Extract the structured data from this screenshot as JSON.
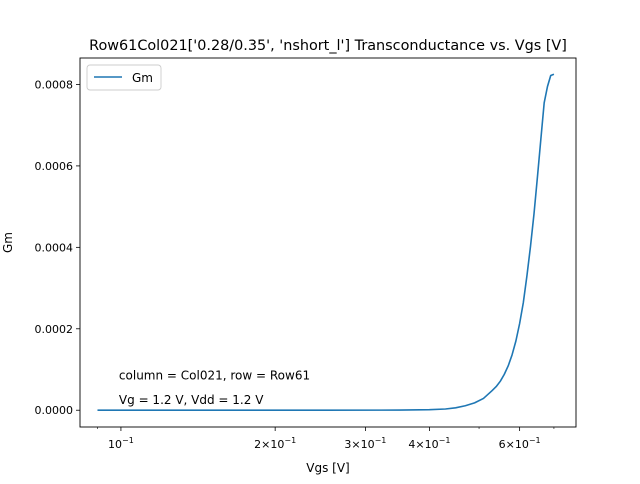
{
  "chart_data": {
    "type": "line",
    "title": "Row61Col021['0.28/0.35', 'nshort_l'] Transconductance vs. Vgs [V]",
    "xlabel": "Vgs [V]",
    "ylabel": "Gm",
    "xscale": "log",
    "xlim": [
      0.0832,
      0.773
    ],
    "ylim": [
      -4.12e-05,
      0.000865
    ],
    "grid": false,
    "legend_position": "top-left",
    "x_ticks": [
      {
        "value": 0.1,
        "base": "10",
        "exp": "−1",
        "coef": ""
      },
      {
        "value": 0.2,
        "base": "10",
        "exp": "−1",
        "coef": "2×"
      },
      {
        "value": 0.3,
        "base": "10",
        "exp": "−1",
        "coef": "3×"
      },
      {
        "value": 0.4,
        "base": "10",
        "exp": "−1",
        "coef": "4×"
      },
      {
        "value": 0.6,
        "base": "10",
        "exp": "−1",
        "coef": "6×"
      }
    ],
    "x_minor_ticks": [
      0.09,
      0.5,
      0.7
    ],
    "y_ticks": [
      {
        "value": 0,
        "label": "0.0000"
      },
      {
        "value": 0.0002,
        "label": "0.0002"
      },
      {
        "value": 0.0004,
        "label": "0.0004"
      },
      {
        "value": 0.0006,
        "label": "0.0006"
      },
      {
        "value": 0.0008,
        "label": "0.0008"
      }
    ],
    "annotations": [
      {
        "text": "column = Col021, row = Row61",
        "x": 0.1,
        "y": 7.52e-05
      },
      {
        "text": "Vg = 1.2 V, Vdd = 1.2 V",
        "x": 0.1,
        "y": 1.57e-05
      }
    ],
    "series": [
      {
        "name": "Gm",
        "color": "#1f77b4",
        "x": [
          0.09,
          0.15,
          0.25,
          0.35,
          0.4,
          0.43,
          0.45,
          0.47,
          0.49,
          0.51,
          0.53,
          0.54,
          0.55,
          0.56,
          0.57,
          0.58,
          0.59,
          0.6,
          0.61,
          0.62,
          0.63,
          0.64,
          0.65,
          0.66,
          0.67,
          0.68,
          0.69,
          0.7
        ],
        "y": [
          0.0,
          0.0,
          0.0,
          3e-07,
          1.2e-06,
          3e-06,
          6e-06,
          1.1e-05,
          1.8e-05,
          2.9e-05,
          4.8e-05,
          5.8e-05,
          7.1e-05,
          8.8e-05,
          0.000109,
          0.000136,
          0.00017,
          0.000213,
          0.000264,
          0.00033,
          0.000402,
          0.000482,
          0.000573,
          0.000665,
          0.000755,
          0.000795,
          0.000822,
          0.000825
        ]
      }
    ]
  }
}
